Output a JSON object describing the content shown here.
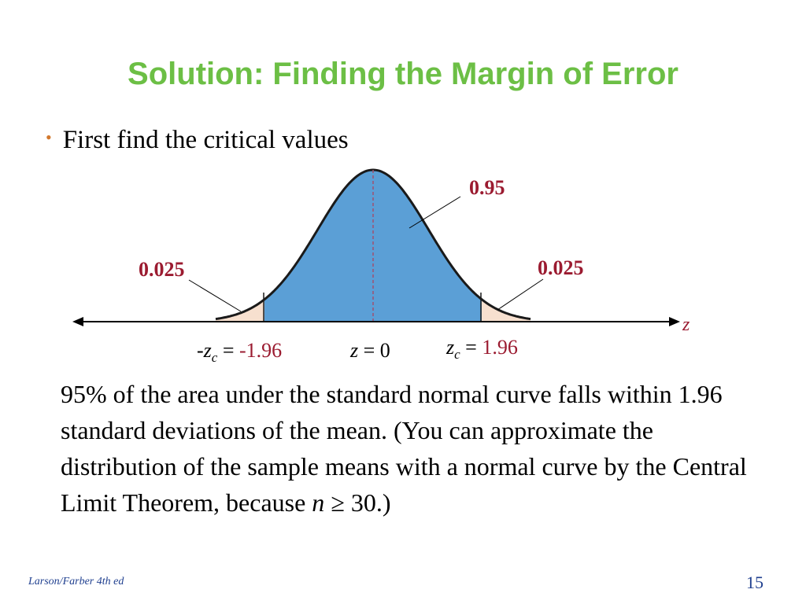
{
  "slide": {
    "title": "Solution: Finding the Margin of Error",
    "bullet": "First find the critical values",
    "page_number": "15",
    "footer": "Larson/Farber 4th ed"
  },
  "diagram": {
    "center_area": "0.95",
    "left_tail_area": "0.025",
    "right_tail_area": "0.025",
    "axis_label": "z",
    "neg_crit_prefix": "-",
    "neg_crit_var": "z",
    "crit_subscript": "c",
    "equals": " = ",
    "neg_crit_value": "-1.96",
    "center_var": "z",
    "center_eq": " = 0",
    "pos_crit_var": "z",
    "pos_crit_value": "1.96",
    "critical_z": 1.96,
    "colors": {
      "center_fill": "#5b9fd6",
      "tail_fill": "#f7e0cf",
      "label_red": "#9b1b30",
      "title_green": "#6cbf45"
    }
  },
  "paragraph": {
    "text_before_n": "95% of the area under the standard normal curve falls within 1.96 standard deviations of the mean. (You can approximate the distribution of the sample means with a normal curve by the Central Limit Theorem, because ",
    "n_symbol": "n",
    "text_after_n": " ≥ 30.)"
  }
}
